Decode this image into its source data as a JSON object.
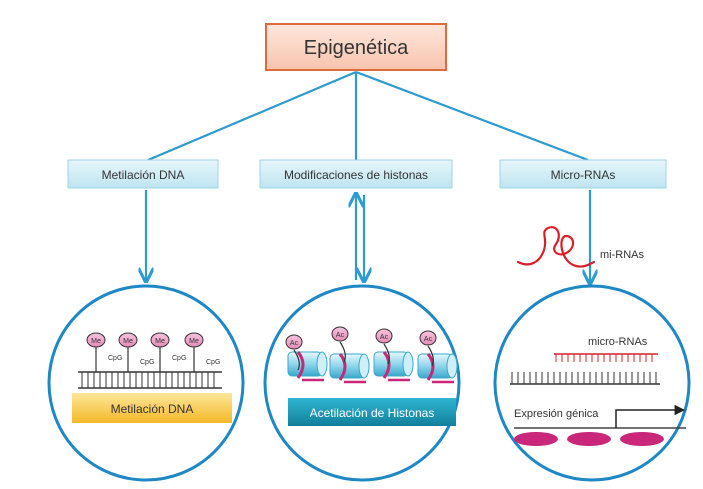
{
  "root": {
    "title": "Epigenética"
  },
  "branches": [
    {
      "label": "Metilación DNA",
      "panel_label": "Metilación DNA",
      "mark_label": "Me",
      "site_label": "CpG"
    },
    {
      "label": "Modificaciones de histonas",
      "panel_label": "Acetilación de Histonas",
      "mark_label": "Ac"
    },
    {
      "label": "Micro-RNAs",
      "side_label": "mi-RNAs",
      "inner_label": "micro-RNAs",
      "expression_label": "Expresión génica"
    }
  ],
  "colors": {
    "connector": "#2c9bd2",
    "root_fill": "#fbd8c9",
    "root_border": "#e06a3a",
    "branch_fill": "#cdebf4",
    "circle_border": "#1e88c7",
    "methyl_bar": "#f6c641",
    "histone_bar": "#1a97b5",
    "magenta": "#c8277a",
    "mirna_red": "#d9202a"
  }
}
